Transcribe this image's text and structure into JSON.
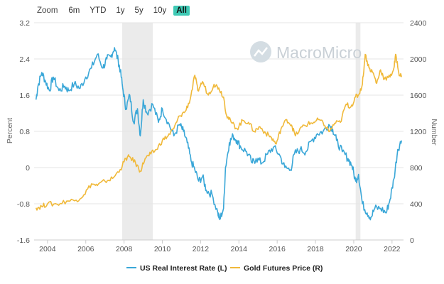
{
  "toolbar": {
    "zoom_label": "Zoom",
    "zoom_options": [
      "6m",
      "YTD",
      "1y",
      "5y",
      "10y",
      "All"
    ],
    "active_option": "All"
  },
  "watermark": "MacroMicro",
  "colors": {
    "rate": "#3aa7d8",
    "gold": "#f0b93a",
    "shade": "#ebebeb",
    "grid": "#e6e6e6",
    "zoom_active": "#3ec9b4"
  },
  "chart_data": {
    "type": "line",
    "x_ticks": [
      "2004",
      "2006",
      "2008",
      "2010",
      "2012",
      "2014",
      "2016",
      "2018",
      "2020",
      "2022"
    ],
    "x_range": [
      2003.3,
      2022.6
    ],
    "left_axis": {
      "title": "Percent",
      "ticks": [
        "3.2",
        "2.4",
        "1.6",
        "0.8",
        "0",
        "-0.8",
        "-1.6"
      ],
      "range": [
        -1.6,
        3.2
      ]
    },
    "right_axis": {
      "title": "Number",
      "ticks": [
        "2400",
        "2000",
        "1600",
        "1200",
        "800",
        "400",
        "0"
      ],
      "range": [
        0,
        2400
      ]
    },
    "shaded_periods": [
      [
        2007.9,
        2009.5
      ],
      [
        2020.1,
        2020.35
      ]
    ],
    "legend_position": "bottom-center",
    "series": [
      {
        "name": "US Real Interest Rate (L)",
        "axis": "left",
        "color_key": "rate",
        "points": [
          [
            2003.4,
            1.5
          ],
          [
            2003.5,
            1.8
          ],
          [
            2003.7,
            2.1
          ],
          [
            2003.9,
            1.9
          ],
          [
            2004.1,
            1.7
          ],
          [
            2004.3,
            2.0
          ],
          [
            2004.6,
            1.7
          ],
          [
            2004.9,
            1.8
          ],
          [
            2005.1,
            1.7
          ],
          [
            2005.4,
            1.85
          ],
          [
            2005.7,
            1.75
          ],
          [
            2006.0,
            2.0
          ],
          [
            2006.3,
            2.2
          ],
          [
            2006.6,
            2.5
          ],
          [
            2006.9,
            2.2
          ],
          [
            2007.1,
            2.4
          ],
          [
            2007.3,
            2.45
          ],
          [
            2007.5,
            2.65
          ],
          [
            2007.7,
            2.35
          ],
          [
            2007.8,
            2.15
          ],
          [
            2007.95,
            1.7
          ],
          [
            2008.1,
            1.3
          ],
          [
            2008.3,
            1.6
          ],
          [
            2008.5,
            1.0
          ],
          [
            2008.7,
            1.3
          ],
          [
            2008.85,
            0.7
          ],
          [
            2009.0,
            1.5
          ],
          [
            2009.2,
            1.2
          ],
          [
            2009.5,
            1.4
          ],
          [
            2009.8,
            1.0
          ],
          [
            2010.0,
            1.3
          ],
          [
            2010.3,
            1.0
          ],
          [
            2010.6,
            0.7
          ],
          [
            2010.9,
            0.95
          ],
          [
            2011.1,
            0.8
          ],
          [
            2011.3,
            0.55
          ],
          [
            2011.5,
            0.15
          ],
          [
            2011.7,
            -0.05
          ],
          [
            2011.9,
            -0.3
          ],
          [
            2012.1,
            -0.2
          ],
          [
            2012.3,
            -0.5
          ],
          [
            2012.6,
            -0.6
          ],
          [
            2012.9,
            -1.0
          ],
          [
            2013.0,
            -1.15
          ],
          [
            2013.2,
            -0.9
          ],
          [
            2013.3,
            0.0
          ],
          [
            2013.5,
            0.55
          ],
          [
            2013.7,
            0.7
          ],
          [
            2013.9,
            0.6
          ],
          [
            2014.1,
            0.45
          ],
          [
            2014.4,
            0.35
          ],
          [
            2014.7,
            0.1
          ],
          [
            2014.9,
            0.2
          ],
          [
            2015.2,
            0.1
          ],
          [
            2015.5,
            0.3
          ],
          [
            2015.8,
            0.45
          ],
          [
            2016.1,
            0.3
          ],
          [
            2016.4,
            0.0
          ],
          [
            2016.7,
            -0.05
          ],
          [
            2016.9,
            0.3
          ],
          [
            2017.2,
            0.4
          ],
          [
            2017.5,
            0.35
          ],
          [
            2017.8,
            0.6
          ],
          [
            2018.1,
            0.75
          ],
          [
            2018.4,
            0.8
          ],
          [
            2018.7,
            0.95
          ],
          [
            2018.9,
            0.85
          ],
          [
            2019.1,
            0.6
          ],
          [
            2019.4,
            0.35
          ],
          [
            2019.7,
            0.2
          ],
          [
            2019.9,
            0.05
          ],
          [
            2020.1,
            -0.3
          ],
          [
            2020.25,
            -0.15
          ],
          [
            2020.45,
            -0.8
          ],
          [
            2020.7,
            -1.0
          ],
          [
            2020.9,
            -1.1
          ],
          [
            2021.1,
            -0.9
          ],
          [
            2021.4,
            -0.9
          ],
          [
            2021.7,
            -1.0
          ],
          [
            2021.9,
            -0.7
          ],
          [
            2022.1,
            -0.25
          ],
          [
            2022.3,
            0.4
          ],
          [
            2022.5,
            0.6
          ]
        ]
      },
      {
        "name": "Gold Futures Price (R)",
        "axis": "right",
        "color_key": "gold",
        "points": [
          [
            2003.4,
            355
          ],
          [
            2003.7,
            370
          ],
          [
            2004.0,
            400
          ],
          [
            2004.5,
            395
          ],
          [
            2005.0,
            430
          ],
          [
            2005.5,
            440
          ],
          [
            2005.9,
            500
          ],
          [
            2006.3,
            620
          ],
          [
            2006.6,
            600
          ],
          [
            2007.0,
            650
          ],
          [
            2007.4,
            680
          ],
          [
            2007.8,
            780
          ],
          [
            2008.1,
            900
          ],
          [
            2008.3,
            920
          ],
          [
            2008.6,
            850
          ],
          [
            2008.85,
            760
          ],
          [
            2009.1,
            900
          ],
          [
            2009.4,
            950
          ],
          [
            2009.7,
            1000
          ],
          [
            2010.0,
            1100
          ],
          [
            2010.3,
            1150
          ],
          [
            2010.6,
            1230
          ],
          [
            2010.9,
            1370
          ],
          [
            2011.2,
            1420
          ],
          [
            2011.45,
            1550
          ],
          [
            2011.7,
            1820
          ],
          [
            2011.85,
            1650
          ],
          [
            2012.1,
            1750
          ],
          [
            2012.4,
            1600
          ],
          [
            2012.7,
            1720
          ],
          [
            2012.95,
            1680
          ],
          [
            2013.2,
            1580
          ],
          [
            2013.35,
            1380
          ],
          [
            2013.6,
            1300
          ],
          [
            2013.9,
            1230
          ],
          [
            2014.2,
            1320
          ],
          [
            2014.5,
            1300
          ],
          [
            2014.8,
            1200
          ],
          [
            2015.1,
            1250
          ],
          [
            2015.4,
            1180
          ],
          [
            2015.7,
            1130
          ],
          [
            2015.95,
            1060
          ],
          [
            2016.2,
            1230
          ],
          [
            2016.5,
            1330
          ],
          [
            2016.75,
            1270
          ],
          [
            2016.95,
            1150
          ],
          [
            2017.3,
            1250
          ],
          [
            2017.6,
            1280
          ],
          [
            2017.9,
            1300
          ],
          [
            2018.2,
            1330
          ],
          [
            2018.5,
            1260
          ],
          [
            2018.75,
            1200
          ],
          [
            2019.0,
            1290
          ],
          [
            2019.3,
            1300
          ],
          [
            2019.6,
            1500
          ],
          [
            2019.85,
            1470
          ],
          [
            2020.1,
            1580
          ],
          [
            2020.25,
            1600
          ],
          [
            2020.45,
            1720
          ],
          [
            2020.6,
            2050
          ],
          [
            2020.8,
            1900
          ],
          [
            2021.0,
            1850
          ],
          [
            2021.2,
            1730
          ],
          [
            2021.4,
            1880
          ],
          [
            2021.6,
            1780
          ],
          [
            2021.9,
            1800
          ],
          [
            2022.1,
            1900
          ],
          [
            2022.2,
            2050
          ],
          [
            2022.35,
            1850
          ],
          [
            2022.5,
            1800
          ]
        ]
      }
    ]
  }
}
